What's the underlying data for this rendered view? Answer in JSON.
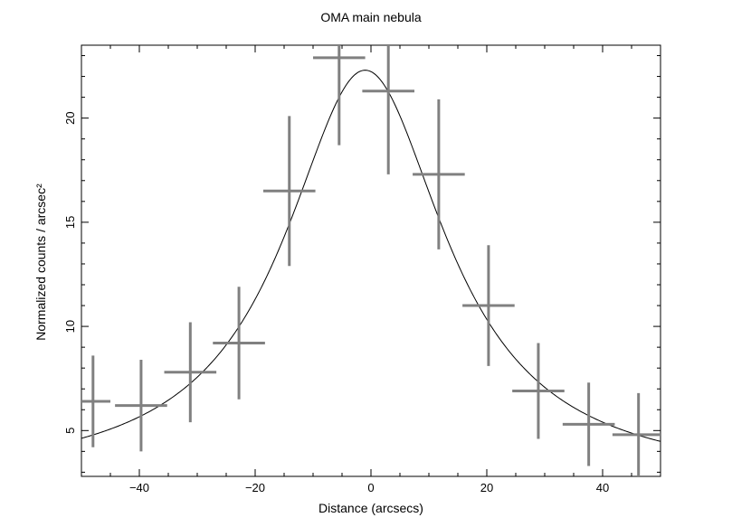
{
  "chart_data": {
    "type": "scatter",
    "title": "OMA main nebula",
    "xlabel": "Distance (arcsecs)",
    "ylabel": "Normalized counts / arcsec²",
    "xlim": [
      -50,
      50
    ],
    "ylim": [
      2.8,
      23.5
    ],
    "x_ticks": [
      -40,
      -20,
      0,
      20,
      40
    ],
    "x_tick_labels": [
      "−40",
      "−20",
      "0",
      "20",
      "40"
    ],
    "y_ticks": [
      5,
      10,
      15,
      20
    ],
    "y_tick_labels": [
      "5",
      "10",
      "15",
      "20"
    ],
    "grid": false,
    "colors": {
      "data": "#808080",
      "model": "#000000"
    },
    "series": [
      {
        "type": "errorbar",
        "points": [
          {
            "x": -48.0,
            "y": 6.4,
            "xerr": 3.0,
            "yerr_low": 2.2,
            "yerr_high": 2.2
          },
          {
            "x": -39.7,
            "y": 6.2,
            "xerr": 4.5,
            "yerr_low": 2.2,
            "yerr_high": 2.2
          },
          {
            "x": -31.2,
            "y": 7.8,
            "xerr": 4.5,
            "yerr_low": 2.4,
            "yerr_high": 2.4
          },
          {
            "x": -22.8,
            "y": 9.2,
            "xerr": 4.5,
            "yerr_low": 2.7,
            "yerr_high": 2.7
          },
          {
            "x": -14.1,
            "y": 16.5,
            "xerr": 4.5,
            "yerr_low": 3.6,
            "yerr_high": 3.6
          },
          {
            "x": -5.5,
            "y": 22.9,
            "xerr": 4.5,
            "yerr_low": 4.2,
            "yerr_high": 4.2
          },
          {
            "x": 3.0,
            "y": 21.3,
            "xerr": 4.5,
            "yerr_low": 4.0,
            "yerr_high": 4.0
          },
          {
            "x": 11.7,
            "y": 17.3,
            "xerr": 4.5,
            "yerr_low": 3.6,
            "yerr_high": 3.6
          },
          {
            "x": 20.3,
            "y": 11.0,
            "xerr": 4.5,
            "yerr_low": 2.9,
            "yerr_high": 2.9
          },
          {
            "x": 28.9,
            "y": 6.9,
            "xerr": 4.5,
            "yerr_low": 2.3,
            "yerr_high": 2.3
          },
          {
            "x": 37.6,
            "y": 5.3,
            "xerr": 4.5,
            "yerr_low": 2.0,
            "yerr_high": 2.0
          },
          {
            "x": 46.2,
            "y": 4.8,
            "xerr": 4.5,
            "yerr_low": 2.0,
            "yerr_high": 2.0
          }
        ]
      },
      {
        "type": "line",
        "model": "lorentzian",
        "amplitude": 19.8,
        "center": -1.0,
        "gamma": 17.0,
        "baseline": 2.5
      }
    ]
  }
}
